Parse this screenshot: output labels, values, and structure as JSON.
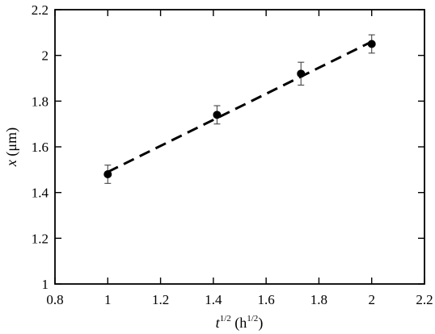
{
  "chart_data": {
    "type": "scatter",
    "title": "",
    "xlabel": {
      "symbol": "t",
      "symbol_exponent": "1/2",
      "unit_open": " (h",
      "unit_exponent": "1/2",
      "unit_close": ")"
    },
    "ylabel": {
      "symbol": "x",
      "unit": " (μm)"
    },
    "xlim": [
      0.8,
      2.2
    ],
    "ylim": [
      1.0,
      2.2
    ],
    "xticks": [
      0.8,
      1.0,
      1.2,
      1.4,
      1.6,
      1.8,
      2.0,
      2.2
    ],
    "xtick_labels": [
      "0.8",
      "1",
      "1.2",
      "1.4",
      "1.6",
      "1.8",
      "2",
      "2.2"
    ],
    "yticks": [
      1.0,
      1.2,
      1.4,
      1.6,
      1.8,
      2.0,
      2.2
    ],
    "ytick_labels": [
      "1",
      "1.2",
      "1.4",
      "1.6",
      "1.8",
      "2",
      "2.2"
    ],
    "grid": false,
    "series": [
      {
        "marker": "filled-circle",
        "color": "#000000",
        "x": [
          1.0,
          1.414,
          1.732,
          2.0
        ],
        "y": [
          1.48,
          1.74,
          1.92,
          2.05
        ],
        "error": [
          0.04,
          0.04,
          0.05,
          0.04
        ]
      }
    ],
    "fit_line": {
      "style": "dashed",
      "color": "#000000",
      "x": [
        1.0,
        2.0
      ],
      "y": [
        1.49,
        2.06
      ]
    }
  }
}
